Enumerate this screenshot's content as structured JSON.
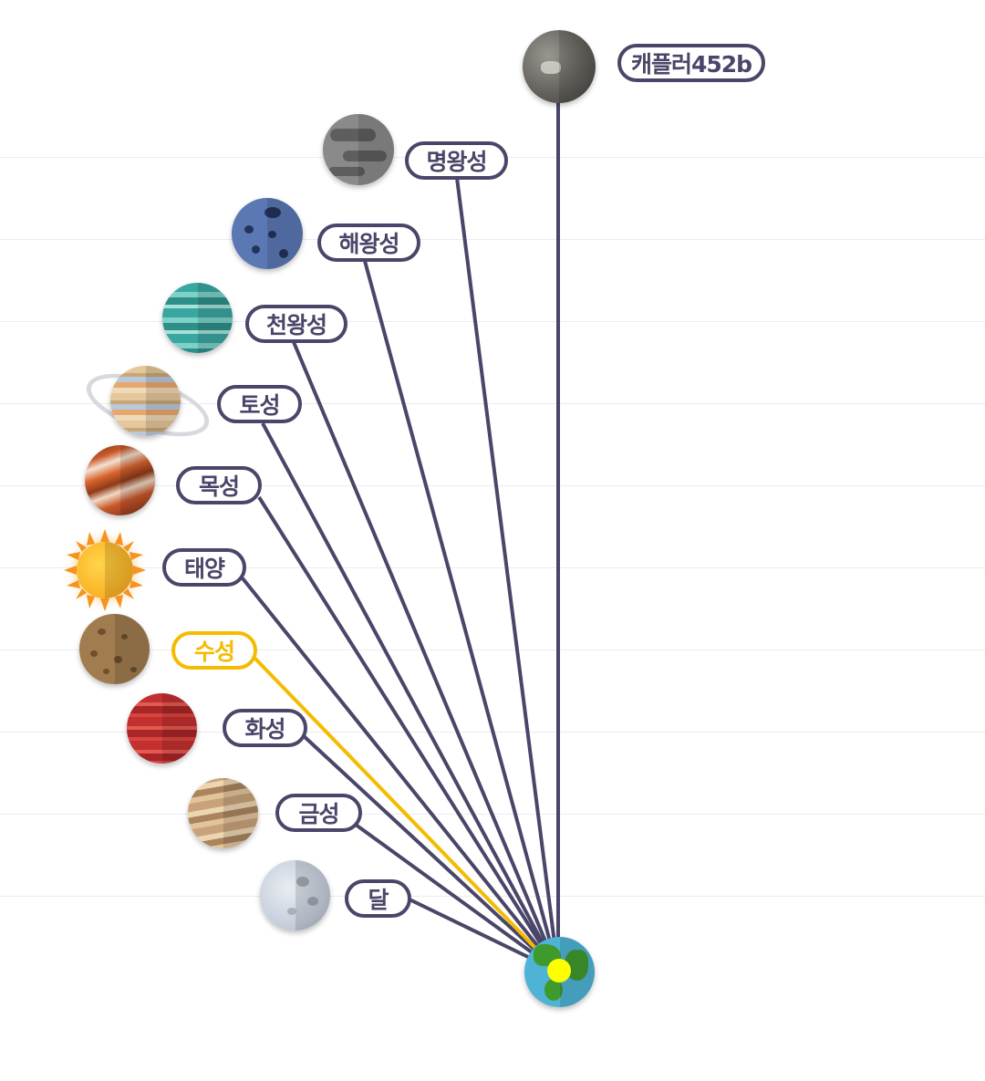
{
  "labels": {
    "kepler": "캐플러452b",
    "pluto": "명왕성",
    "neptune": "해왕성",
    "uranus": "천왕성",
    "saturn": "토성",
    "jupiter": "목성",
    "sun": "태양",
    "mercury": "수성",
    "mars": "화성",
    "venus": "금성",
    "moon": "달"
  },
  "selected": "mercury",
  "colors": {
    "line": "#4a4669",
    "highlight": "#f5bb00",
    "earth_dot": "#ffff00"
  },
  "icons": {
    "kepler": "kepler-planet-icon",
    "pluto": "pluto-icon",
    "neptune": "neptune-icon",
    "uranus": "uranus-icon",
    "saturn": "saturn-icon",
    "jupiter": "jupiter-icon",
    "sun": "sun-icon",
    "mercury": "mercury-icon",
    "mars": "mars-icon",
    "venus": "venus-icon",
    "moon": "moon-icon",
    "earth": "earth-icon"
  }
}
